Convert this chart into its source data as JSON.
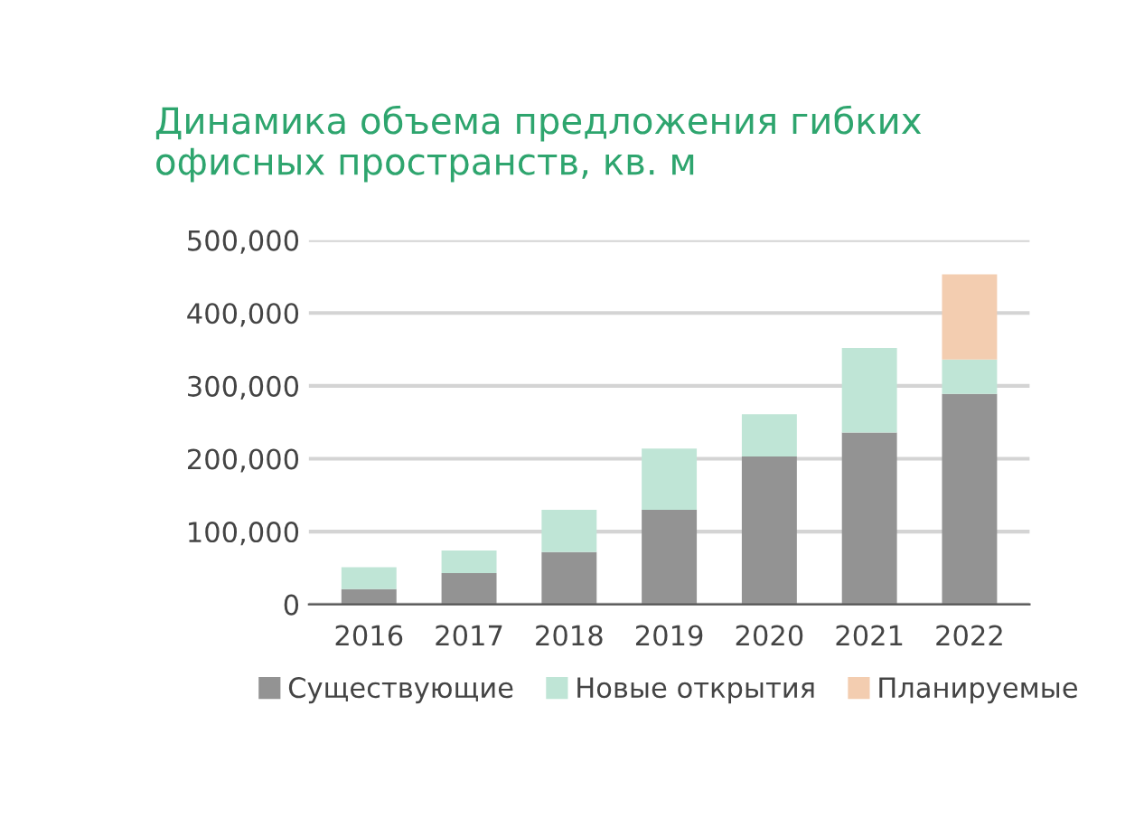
{
  "chart_data": {
    "type": "bar",
    "stacked": true,
    "title": "Динамика объема предложения гибких\nофисных пространств, кв. м",
    "categories": [
      "2016",
      "2017",
      "2018",
      "2019",
      "2020",
      "2021",
      "2022"
    ],
    "series": [
      {
        "name": "Существующие",
        "color": "#939393",
        "values": [
          21000,
          43000,
          72000,
          130000,
          203000,
          236000,
          289000
        ]
      },
      {
        "name": "Новые открытия",
        "color": "#bfe5d6",
        "values": [
          30000,
          31000,
          58000,
          84000,
          58000,
          116000,
          47000
        ]
      },
      {
        "name": "Планируемые",
        "color": "#f3cdb0",
        "values": [
          null,
          null,
          null,
          null,
          null,
          null,
          117000
        ]
      }
    ],
    "ylim": [
      0,
      500000
    ],
    "yticks": [
      {
        "value": 0,
        "label": "0"
      },
      {
        "value": 100000,
        "label": "100,000"
      },
      {
        "value": 200000,
        "label": "200,000"
      },
      {
        "value": 300000,
        "label": "300,000"
      },
      {
        "value": 400000,
        "label": "400,000"
      },
      {
        "value": 500000,
        "label": "500,000"
      }
    ],
    "grid": "y",
    "legend": "bottom"
  }
}
